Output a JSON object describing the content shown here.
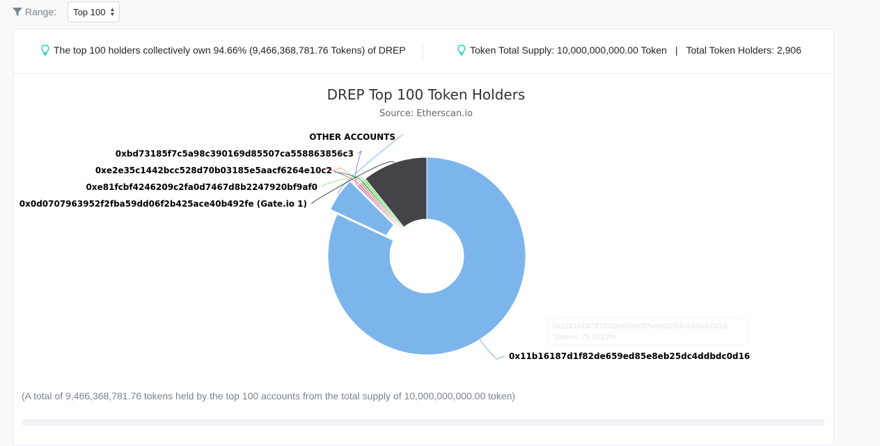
{
  "range": {
    "label": "Range:",
    "selected": "Top 100"
  },
  "info": {
    "summary": "The top 100 holders collectively own 94.66% (9,466,368,781.76 Tokens) of DREP",
    "supply": "Token Total Supply: 10,000,000,000.00 Token",
    "separator": "|",
    "holders": "Total Token Holders: 2,906"
  },
  "footnote": "(A total of 9,466,368,781.76 tokens held by the top 100 accounts from the total supply of 10,000,000,000.00 token)",
  "chart_data": {
    "type": "pie",
    "title": "DREP Top 100 Token Holders",
    "subtitle": "Source: Etherscan.io",
    "slices": [
      {
        "name": "0x11b16187d1f82de659ed85e8eb25dc4ddbdc0d16",
        "value": 79.0712,
        "color": "#7cb5ec"
      },
      {
        "name": "OTHER ACCOUNTS",
        "value": 5.34,
        "color": "#7cb5ec",
        "sliced": true
      },
      {
        "name": "0xbd73185f7c5a98c390169d85507ca558863856c3",
        "value": 0.3,
        "color": "#8085e9"
      },
      {
        "name": "",
        "value": 0.3,
        "color": "#f15c80"
      },
      {
        "name": "0xe2e35c1442bcc528d70b03185e5aacf6264e10c2",
        "value": 0.35,
        "color": "#f7a35c"
      },
      {
        "name": "",
        "value": 0.3,
        "color": "#2b908f"
      },
      {
        "name": "0xe81fcbf4246209c2fa0d7467d8b2247920bf9af0",
        "value": 0.5,
        "color": "#90ed7d"
      },
      {
        "name": "0x0d0707963952f2fba59dd06f2b425ace40b492fe (Gate.io 1)",
        "value": 10.3,
        "color": "#434348"
      }
    ],
    "tooltip": {
      "name": "0x11b16187d1f82de659ed85e8eb25dc4ddbdc0d16",
      "value_text": "Tokens: 79.0712%"
    }
  }
}
